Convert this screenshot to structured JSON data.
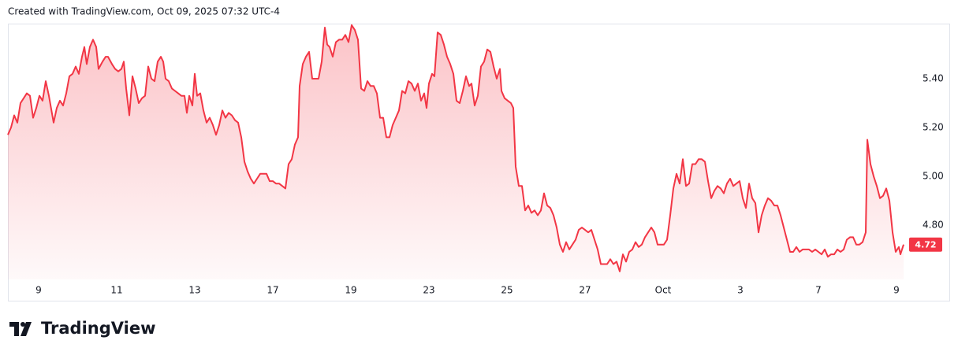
{
  "header": {
    "text": "Created with TradingView.com, Oct 09, 2025 07:32 UTC-4"
  },
  "footer": {
    "brand": "TradingView"
  },
  "chart_data": {
    "type": "area",
    "color": "#f23645",
    "xlim": [
      0,
      285
    ],
    "ylim": [
      4.577,
      5.626
    ],
    "xticks": [
      {
        "value": 9.75,
        "label": "9"
      },
      {
        "value": 34.5,
        "label": "11"
      },
      {
        "value": 59.25,
        "label": "13"
      },
      {
        "value": 84,
        "label": "17"
      },
      {
        "value": 108.75,
        "label": "19"
      },
      {
        "value": 133.5,
        "label": "23"
      },
      {
        "value": 158.25,
        "label": "25"
      },
      {
        "value": 183,
        "label": "27"
      },
      {
        "value": 207.75,
        "label": "Oct"
      },
      {
        "value": 232.25,
        "label": "3"
      },
      {
        "value": 257,
        "label": "7"
      },
      {
        "value": 281.75,
        "label": "9"
      }
    ],
    "yticks": [
      {
        "value": 5.4,
        "label": "5.40"
      },
      {
        "value": 5.2,
        "label": "5.20"
      },
      {
        "value": 5.0,
        "label": "5.00"
      },
      {
        "value": 4.8,
        "label": "4.80"
      }
    ],
    "last_price": 4.72,
    "x": [
      0,
      1,
      2,
      3,
      4,
      5,
      6,
      7,
      8,
      9,
      10,
      11,
      12,
      13,
      14.5,
      15.5,
      16.5,
      17.5,
      18.5,
      19.5,
      20.5,
      21.5,
      22.5,
      23.5,
      24.25,
      25,
      26,
      27,
      28,
      28.75,
      30,
      31,
      31.75,
      33,
      34,
      35,
      36,
      36.75,
      37.5,
      38.5,
      39.5,
      40.5,
      41.5,
      42.5,
      43.5,
      44.5,
      45.5,
      46.5,
      47.5,
      48.5,
      49.25,
      50,
      51,
      52,
      53,
      54,
      55,
      56,
      56.75,
      57.5,
      58.5,
      59.25,
      60,
      61,
      62,
      63,
      64,
      65,
      66,
      67,
      68,
      69,
      70,
      71,
      72,
      73,
      74,
      75,
      76,
      77,
      78,
      79,
      80,
      81,
      82,
      83,
      84,
      85,
      86,
      87,
      88,
      89,
      90,
      91,
      92,
      92.5,
      93.5,
      94.5,
      95.5,
      96.5,
      97.5,
      98.5,
      99.5,
      100.5,
      101.25,
      102,
      103,
      104,
      105,
      106,
      107,
      108,
      109,
      110,
      111,
      112,
      113,
      114,
      115,
      116,
      117,
      118,
      119,
      120,
      121,
      122,
      123,
      124,
      125,
      126,
      127,
      128,
      129,
      130,
      131,
      132,
      132.75,
      133.5,
      134.5,
      135.25,
      136.25,
      137.25,
      138.25,
      139.25,
      140.25,
      141.25,
      142.25,
      143.25,
      144.25,
      145.25,
      146.25,
      147,
      148,
      149,
      150,
      151,
      152,
      153,
      154,
      155,
      156,
      156.5,
      157.5,
      158.5,
      159.5,
      160.25,
      161,
      162,
      163,
      164,
      165,
      166,
      167,
      168,
      169,
      170,
      171,
      172,
      173,
      174,
      175,
      176,
      177,
      178,
      179,
      180,
      181,
      182,
      183,
      184,
      185,
      186,
      187,
      188,
      189,
      190,
      191,
      192,
      193,
      194,
      195,
      196,
      197,
      198,
      199,
      200,
      201,
      202,
      203,
      204,
      205,
      206,
      207,
      208,
      209,
      210,
      211,
      212,
      213,
      214,
      215,
      216,
      217,
      218,
      219,
      220,
      221,
      222,
      223,
      224,
      225,
      226,
      227,
      228,
      229,
      230,
      231,
      232,
      233,
      234,
      235,
      236,
      237,
      238,
      239,
      240,
      241,
      242,
      243,
      244,
      245,
      246,
      247,
      248,
      249,
      250,
      251,
      252,
      253,
      254,
      255,
      256,
      257,
      258,
      259,
      260,
      261,
      262,
      263,
      264,
      265,
      266,
      267,
      268,
      269,
      270,
      271,
      272,
      272.5,
      273.5,
      274.5,
      275.5,
      276.5,
      277.5,
      278.5,
      279.5,
      280.5,
      281.5,
      282.5,
      283,
      284
    ],
    "values": [
      5.17,
      5.2,
      5.25,
      5.22,
      5.3,
      5.32,
      5.34,
      5.33,
      5.24,
      5.28,
      5.33,
      5.31,
      5.39,
      5.33,
      5.22,
      5.28,
      5.31,
      5.29,
      5.34,
      5.41,
      5.42,
      5.45,
      5.42,
      5.49,
      5.53,
      5.46,
      5.53,
      5.56,
      5.53,
      5.44,
      5.47,
      5.49,
      5.49,
      5.46,
      5.44,
      5.43,
      5.44,
      5.47,
      5.36,
      5.25,
      5.41,
      5.36,
      5.3,
      5.32,
      5.33,
      5.45,
      5.4,
      5.39,
      5.47,
      5.49,
      5.47,
      5.4,
      5.39,
      5.36,
      5.35,
      5.34,
      5.33,
      5.33,
      5.26,
      5.33,
      5.29,
      5.42,
      5.33,
      5.34,
      5.27,
      5.22,
      5.24,
      5.21,
      5.17,
      5.21,
      5.27,
      5.24,
      5.26,
      5.25,
      5.23,
      5.22,
      5.16,
      5.06,
      5.02,
      4.99,
      4.97,
      4.99,
      5.01,
      5.01,
      5.01,
      4.98,
      4.98,
      4.97,
      4.97,
      4.96,
      4.95,
      5.05,
      5.07,
      5.13,
      5.16,
      5.37,
      5.46,
      5.49,
      5.51,
      5.4,
      5.4,
      5.4,
      5.47,
      5.61,
      5.54,
      5.53,
      5.49,
      5.55,
      5.56,
      5.56,
      5.58,
      5.55,
      5.62,
      5.6,
      5.56,
      5.36,
      5.35,
      5.39,
      5.37,
      5.37,
      5.34,
      5.24,
      5.24,
      5.16,
      5.16,
      5.21,
      5.24,
      5.27,
      5.35,
      5.34,
      5.39,
      5.38,
      5.35,
      5.38,
      5.31,
      5.34,
      5.28,
      5.38,
      5.42,
      5.41,
      5.59,
      5.58,
      5.54,
      5.49,
      5.46,
      5.42,
      5.31,
      5.3,
      5.35,
      5.41,
      5.37,
      5.38,
      5.29,
      5.33,
      5.45,
      5.47,
      5.52,
      5.51,
      5.45,
      5.4,
      5.44,
      5.35,
      5.32,
      5.31,
      5.3,
      5.28,
      5.04,
      4.96,
      4.96,
      4.86,
      4.88,
      4.85,
      4.86,
      4.84,
      4.86,
      4.93,
      4.88,
      4.87,
      4.84,
      4.79,
      4.72,
      4.69,
      4.73,
      4.7,
      4.72,
      4.74,
      4.78,
      4.79,
      4.78,
      4.77,
      4.78,
      4.74,
      4.7,
      4.64,
      4.64,
      4.64,
      4.66,
      4.64,
      4.65,
      4.61,
      4.68,
      4.65,
      4.69,
      4.7,
      4.73,
      4.71,
      4.72,
      4.75,
      4.77,
      4.79,
      4.77,
      4.72,
      4.72,
      4.72,
      4.74,
      4.84,
      4.95,
      5.01,
      4.97,
      5.07,
      4.96,
      4.97,
      5.05,
      5.05,
      5.07,
      5.07,
      5.06,
      4.98,
      4.91,
      4.94,
      4.96,
      4.95,
      4.93,
      4.97,
      4.99,
      4.96,
      4.97,
      4.98,
      4.91,
      4.87,
      4.97,
      4.91,
      4.89,
      4.77,
      4.84,
      4.88,
      4.91,
      4.9,
      4.88,
      4.88,
      4.84,
      4.79,
      4.74,
      4.69,
      4.69,
      4.71,
      4.69,
      4.7,
      4.7,
      4.7,
      4.69,
      4.7,
      4.69,
      4.68,
      4.7,
      4.67,
      4.68,
      4.68,
      4.7,
      4.69,
      4.7,
      4.74,
      4.75,
      4.75,
      4.72,
      4.72,
      4.73,
      4.77,
      5.15,
      5.05,
      5.0,
      4.96,
      4.91,
      4.92,
      4.95,
      4.9,
      4.77,
      4.69,
      4.71,
      4.68,
      4.72
    ]
  }
}
